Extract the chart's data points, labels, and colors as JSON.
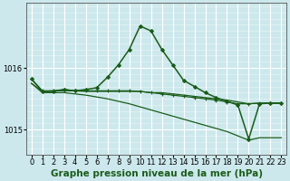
{
  "title": "Graphe pression niveau de la mer (hPa)",
  "bg_color": "#cce8ec",
  "grid_color": "#ffffff",
  "line_color": "#1a5c1a",
  "xlim": [
    -0.5,
    23.5
  ],
  "ylim": [
    1014.6,
    1017.05
  ],
  "yticks": [
    1015.0,
    1016.0
  ],
  "xticks": [
    0,
    1,
    2,
    3,
    4,
    5,
    6,
    7,
    8,
    9,
    10,
    11,
    12,
    13,
    14,
    15,
    16,
    17,
    18,
    19,
    20,
    21,
    22,
    23
  ],
  "series": [
    {
      "x": [
        0,
        1,
        2,
        3,
        4,
        5,
        6,
        7,
        8,
        9,
        10,
        11,
        12,
        13,
        14,
        15,
        16,
        17,
        18,
        19,
        20,
        21,
        22,
        23
      ],
      "y": [
        1015.75,
        1015.62,
        1015.63,
        1015.63,
        1015.63,
        1015.62,
        1015.62,
        1015.62,
        1015.62,
        1015.62,
        1015.62,
        1015.6,
        1015.6,
        1015.58,
        1015.56,
        1015.54,
        1015.52,
        1015.5,
        1015.48,
        1015.45,
        1015.42,
        1015.43,
        1015.43,
        1015.43
      ],
      "marker": null,
      "lw": 0.9
    },
    {
      "x": [
        0,
        1,
        2,
        3,
        4,
        5,
        6,
        7,
        8,
        9,
        10,
        11,
        12,
        13,
        14,
        15,
        16,
        17,
        18,
        19,
        20,
        21,
        22,
        23
      ],
      "y": [
        1015.75,
        1015.6,
        1015.6,
        1015.6,
        1015.58,
        1015.56,
        1015.53,
        1015.5,
        1015.46,
        1015.42,
        1015.37,
        1015.32,
        1015.27,
        1015.22,
        1015.17,
        1015.12,
        1015.07,
        1015.02,
        1014.97,
        1014.9,
        1014.83,
        1014.87,
        1014.87,
        1014.87
      ],
      "marker": null,
      "lw": 0.9
    },
    {
      "x": [
        0,
        1,
        2,
        3,
        4,
        5,
        6,
        7,
        8,
        9,
        10,
        11,
        12,
        13,
        14,
        15,
        16,
        17,
        18,
        19,
        20,
        21,
        22,
        23
      ],
      "y": [
        1015.82,
        1015.62,
        1015.62,
        1015.65,
        1015.63,
        1015.65,
        1015.68,
        1015.85,
        1016.05,
        1016.3,
        1016.68,
        1016.6,
        1016.3,
        1016.05,
        1015.8,
        1015.7,
        1015.6,
        1015.52,
        1015.46,
        1015.4,
        1014.85,
        1015.42,
        1015.43,
        1015.43
      ],
      "marker": "D",
      "ms": 2.0,
      "lw": 1.1
    },
    {
      "x": [
        0,
        1,
        2,
        3,
        4,
        5,
        6,
        7,
        8,
        9,
        10,
        11,
        12,
        13,
        14,
        15,
        16,
        17,
        18,
        19,
        20,
        21,
        22,
        23
      ],
      "y": [
        1015.82,
        1015.63,
        1015.63,
        1015.65,
        1015.63,
        1015.63,
        1015.63,
        1015.63,
        1015.63,
        1015.63,
        1015.62,
        1015.6,
        1015.58,
        1015.56,
        1015.54,
        1015.52,
        1015.5,
        1015.48,
        1015.45,
        1015.42,
        1015.42,
        1015.43,
        1015.43,
        1015.43
      ],
      "marker": "+",
      "ms": 2.5,
      "lw": 0.9
    }
  ],
  "title_fontsize": 7.5,
  "tick_fontsize": 6.0,
  "xlabel_fontsize": 7.5
}
